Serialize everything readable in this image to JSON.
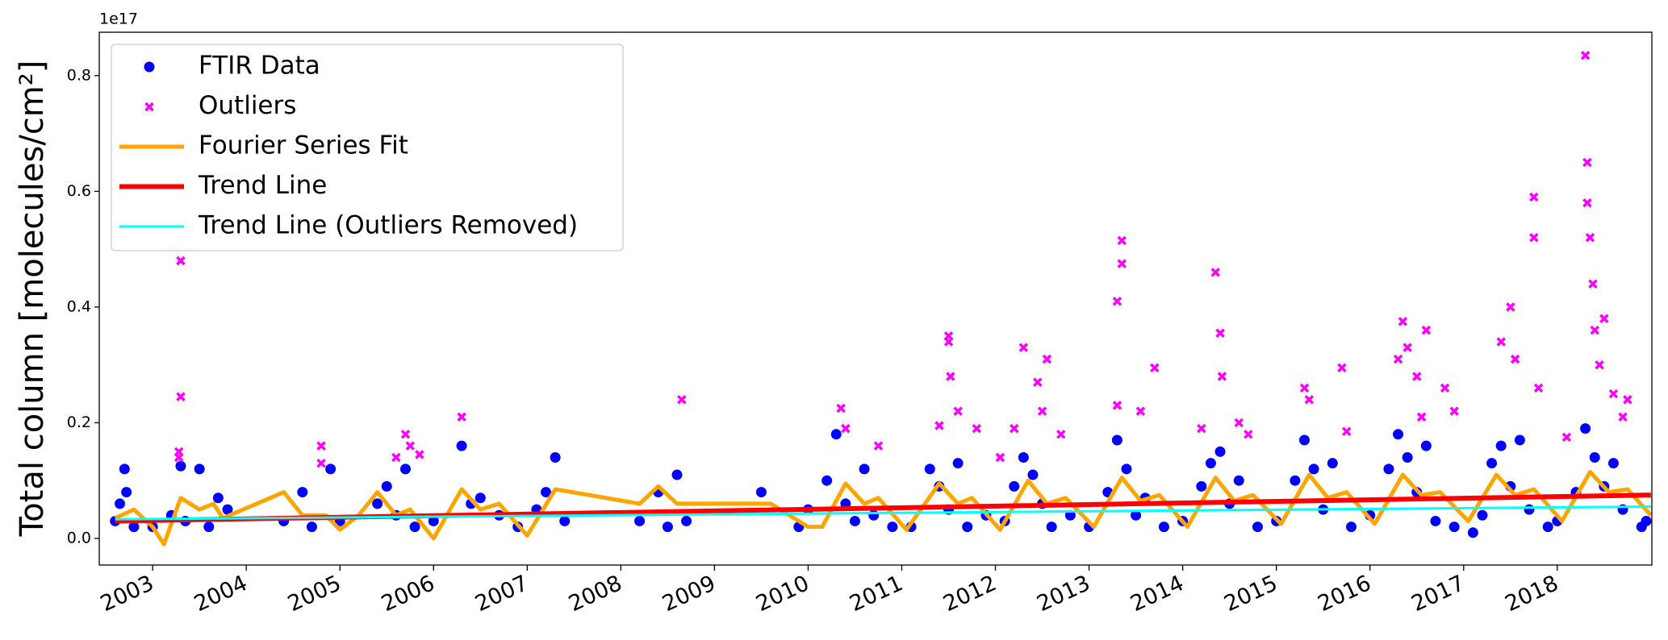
{
  "chart_data": {
    "type": "scatter",
    "y_offset_label": "1e17",
    "y_label": "Total column [molecules/cm²]",
    "xlim": [
      2002.43,
      2019.01
    ],
    "xticks": [
      2003,
      2004,
      2005,
      2006,
      2007,
      2008,
      2009,
      2010,
      2011,
      2012,
      2013,
      2014,
      2015,
      2016,
      2017,
      2018
    ],
    "ylim": [
      -0.046,
      0.875
    ],
    "yticks": [
      {
        "value": 0,
        "label": "0.0"
      },
      {
        "value": 0.2,
        "label": "0.2"
      },
      {
        "value": 0.4,
        "label": "0.4"
      },
      {
        "value": 0.6,
        "label": "0.6"
      },
      {
        "value": 0.8,
        "label": "0.8"
      }
    ],
    "legend": "upper left",
    "series": [
      {
        "name": "FTIR Data",
        "marker": "dot",
        "color": "#0000ff",
        "x": [
          2002.6,
          2002.65,
          2002.7,
          2002.72,
          2002.8,
          2003.0,
          2003.2,
          2003.3,
          2003.35,
          2003.5,
          2003.6,
          2003.7,
          2003.8,
          2004.4,
          2004.6,
          2004.7,
          2004.9,
          2005.0,
          2005.4,
          2005.5,
          2005.6,
          2005.7,
          2005.8,
          2006.0,
          2006.3,
          2006.4,
          2006.5,
          2006.7,
          2006.9,
          2007.1,
          2007.2,
          2007.3,
          2007.4,
          2008.2,
          2008.4,
          2008.5,
          2008.6,
          2008.7,
          2009.5,
          2009.9,
          2010.0,
          2010.2,
          2010.3,
          2010.4,
          2010.5,
          2010.6,
          2010.7,
          2010.9,
          2011.1,
          2011.3,
          2011.4,
          2011.5,
          2011.6,
          2011.7,
          2011.9,
          2012.1,
          2012.2,
          2012.3,
          2012.4,
          2012.5,
          2012.6,
          2012.8,
          2013.0,
          2013.2,
          2013.3,
          2013.4,
          2013.5,
          2013.6,
          2013.8,
          2014.0,
          2014.2,
          2014.3,
          2014.4,
          2014.5,
          2014.6,
          2014.8,
          2015.0,
          2015.2,
          2015.3,
          2015.4,
          2015.5,
          2015.6,
          2015.8,
          2016.0,
          2016.2,
          2016.3,
          2016.4,
          2016.5,
          2016.6,
          2016.7,
          2016.9,
          2017.1,
          2017.2,
          2017.3,
          2017.4,
          2017.5,
          2017.6,
          2017.7,
          2017.9,
          2018.0,
          2018.2,
          2018.3,
          2018.4,
          2018.5,
          2018.6,
          2018.7,
          2018.9,
          2018.95
        ],
        "values": [
          0.03,
          0.06,
          0.12,
          0.08,
          0.02,
          0.02,
          0.04,
          0.125,
          0.03,
          0.12,
          0.02,
          0.07,
          0.05,
          0.03,
          0.08,
          0.02,
          0.12,
          0.03,
          0.06,
          0.09,
          0.04,
          0.12,
          0.02,
          0.03,
          0.16,
          0.06,
          0.07,
          0.04,
          0.02,
          0.05,
          0.08,
          0.14,
          0.03,
          0.03,
          0.08,
          0.02,
          0.11,
          0.03,
          0.08,
          0.02,
          0.05,
          0.1,
          0.18,
          0.06,
          0.03,
          0.12,
          0.04,
          0.02,
          0.02,
          0.12,
          0.09,
          0.05,
          0.13,
          0.02,
          0.04,
          0.03,
          0.09,
          0.14,
          0.11,
          0.06,
          0.02,
          0.04,
          0.02,
          0.08,
          0.17,
          0.12,
          0.04,
          0.07,
          0.02,
          0.03,
          0.09,
          0.13,
          0.15,
          0.06,
          0.1,
          0.02,
          0.03,
          0.1,
          0.17,
          0.12,
          0.05,
          0.13,
          0.02,
          0.04,
          0.12,
          0.18,
          0.14,
          0.08,
          0.16,
          0.03,
          0.02,
          0.01,
          0.04,
          0.13,
          0.16,
          0.09,
          0.17,
          0.05,
          0.02,
          0.03,
          0.08,
          0.19,
          0.14,
          0.09,
          0.13,
          0.05,
          0.02,
          0.03
        ]
      },
      {
        "name": "Outliers",
        "marker": "x",
        "color": "#ff00ff",
        "x": [
          2003.3,
          2003.3,
          2003.28,
          2003.28,
          2004.8,
          2004.8,
          2005.6,
          2005.7,
          2005.75,
          2005.85,
          2006.3,
          2008.65,
          2010.35,
          2010.4,
          2010.75,
          2011.4,
          2011.5,
          2011.5,
          2011.52,
          2011.6,
          2011.8,
          2012.05,
          2012.2,
          2012.3,
          2012.45,
          2012.55,
          2012.5,
          2012.7,
          2013.3,
          2013.35,
          2013.35,
          2013.3,
          2013.55,
          2013.7,
          2014.2,
          2014.35,
          2014.4,
          2014.42,
          2014.6,
          2014.7,
          2015.3,
          2015.35,
          2015.7,
          2015.75,
          2016.3,
          2016.35,
          2016.4,
          2016.5,
          2016.55,
          2016.6,
          2016.8,
          2016.9,
          2017.4,
          2017.5,
          2017.55,
          2017.75,
          2017.75,
          2017.8,
          2018.1,
          2018.3,
          2018.32,
          2018.32,
          2018.35,
          2018.38,
          2018.4,
          2018.45,
          2018.5,
          2018.6,
          2018.7,
          2018.75
        ],
        "values": [
          0.48,
          0.245,
          0.15,
          0.14,
          0.16,
          0.13,
          0.14,
          0.18,
          0.16,
          0.145,
          0.21,
          0.24,
          0.225,
          0.19,
          0.16,
          0.195,
          0.35,
          0.34,
          0.28,
          0.22,
          0.19,
          0.14,
          0.19,
          0.33,
          0.27,
          0.31,
          0.22,
          0.18,
          0.41,
          0.515,
          0.475,
          0.23,
          0.22,
          0.295,
          0.19,
          0.46,
          0.355,
          0.28,
          0.2,
          0.18,
          0.26,
          0.24,
          0.295,
          0.185,
          0.31,
          0.375,
          0.33,
          0.28,
          0.21,
          0.36,
          0.26,
          0.22,
          0.34,
          0.4,
          0.31,
          0.59,
          0.52,
          0.26,
          0.175,
          0.835,
          0.65,
          0.58,
          0.52,
          0.44,
          0.36,
          0.3,
          0.38,
          0.25,
          0.21,
          0.24
        ]
      },
      {
        "name": "Fourier Series Fit",
        "marker": "line",
        "color": "#ffa500",
        "width": 5,
        "x": [
          2002.6,
          2002.8,
          2003.0,
          2003.12,
          2003.3,
          2003.5,
          2003.65,
          2003.75,
          2004.4,
          2004.6,
          2004.85,
          2005.0,
          2005.2,
          2005.4,
          2005.6,
          2005.75,
          2006.0,
          2006.3,
          2006.5,
          2006.7,
          2007.0,
          2007.3,
          2008.2,
          2008.4,
          2008.6,
          2009.6,
          2010.0,
          2010.15,
          2010.4,
          2010.6,
          2010.75,
          2011.05,
          2011.4,
          2011.6,
          2011.75,
          2012.05,
          2012.35,
          2012.55,
          2012.75,
          2013.05,
          2013.35,
          2013.55,
          2013.75,
          2014.05,
          2014.35,
          2014.55,
          2014.75,
          2015.05,
          2015.35,
          2015.55,
          2015.75,
          2016.05,
          2016.35,
          2016.55,
          2016.75,
          2017.05,
          2017.35,
          2017.55,
          2017.75,
          2018.05,
          2018.35,
          2018.55,
          2018.75,
          2019.0
        ],
        "values": [
          0.035,
          0.05,
          0.02,
          -0.01,
          0.07,
          0.05,
          0.06,
          0.035,
          0.08,
          0.04,
          0.04,
          0.015,
          0.04,
          0.08,
          0.04,
          0.05,
          0.0,
          0.085,
          0.05,
          0.06,
          0.005,
          0.085,
          0.06,
          0.09,
          0.06,
          0.06,
          0.02,
          0.02,
          0.095,
          0.06,
          0.07,
          0.015,
          0.095,
          0.06,
          0.07,
          0.015,
          0.1,
          0.06,
          0.07,
          0.02,
          0.105,
          0.065,
          0.075,
          0.02,
          0.105,
          0.065,
          0.075,
          0.025,
          0.11,
          0.07,
          0.08,
          0.025,
          0.11,
          0.075,
          0.08,
          0.03,
          0.11,
          0.075,
          0.085,
          0.03,
          0.115,
          0.08,
          0.085,
          0.04
        ]
      },
      {
        "name": "Trend Line",
        "marker": "line",
        "color": "#ff0000",
        "width": 6,
        "x": [
          2002.6,
          2019.0
        ],
        "values": [
          0.03,
          0.075
        ]
      },
      {
        "name": "Trend Line (Outliers Removed)",
        "marker": "line",
        "color": "#00ffff",
        "width": 3,
        "x": [
          2002.6,
          2019.0
        ],
        "values": [
          0.033,
          0.055
        ]
      }
    ]
  }
}
